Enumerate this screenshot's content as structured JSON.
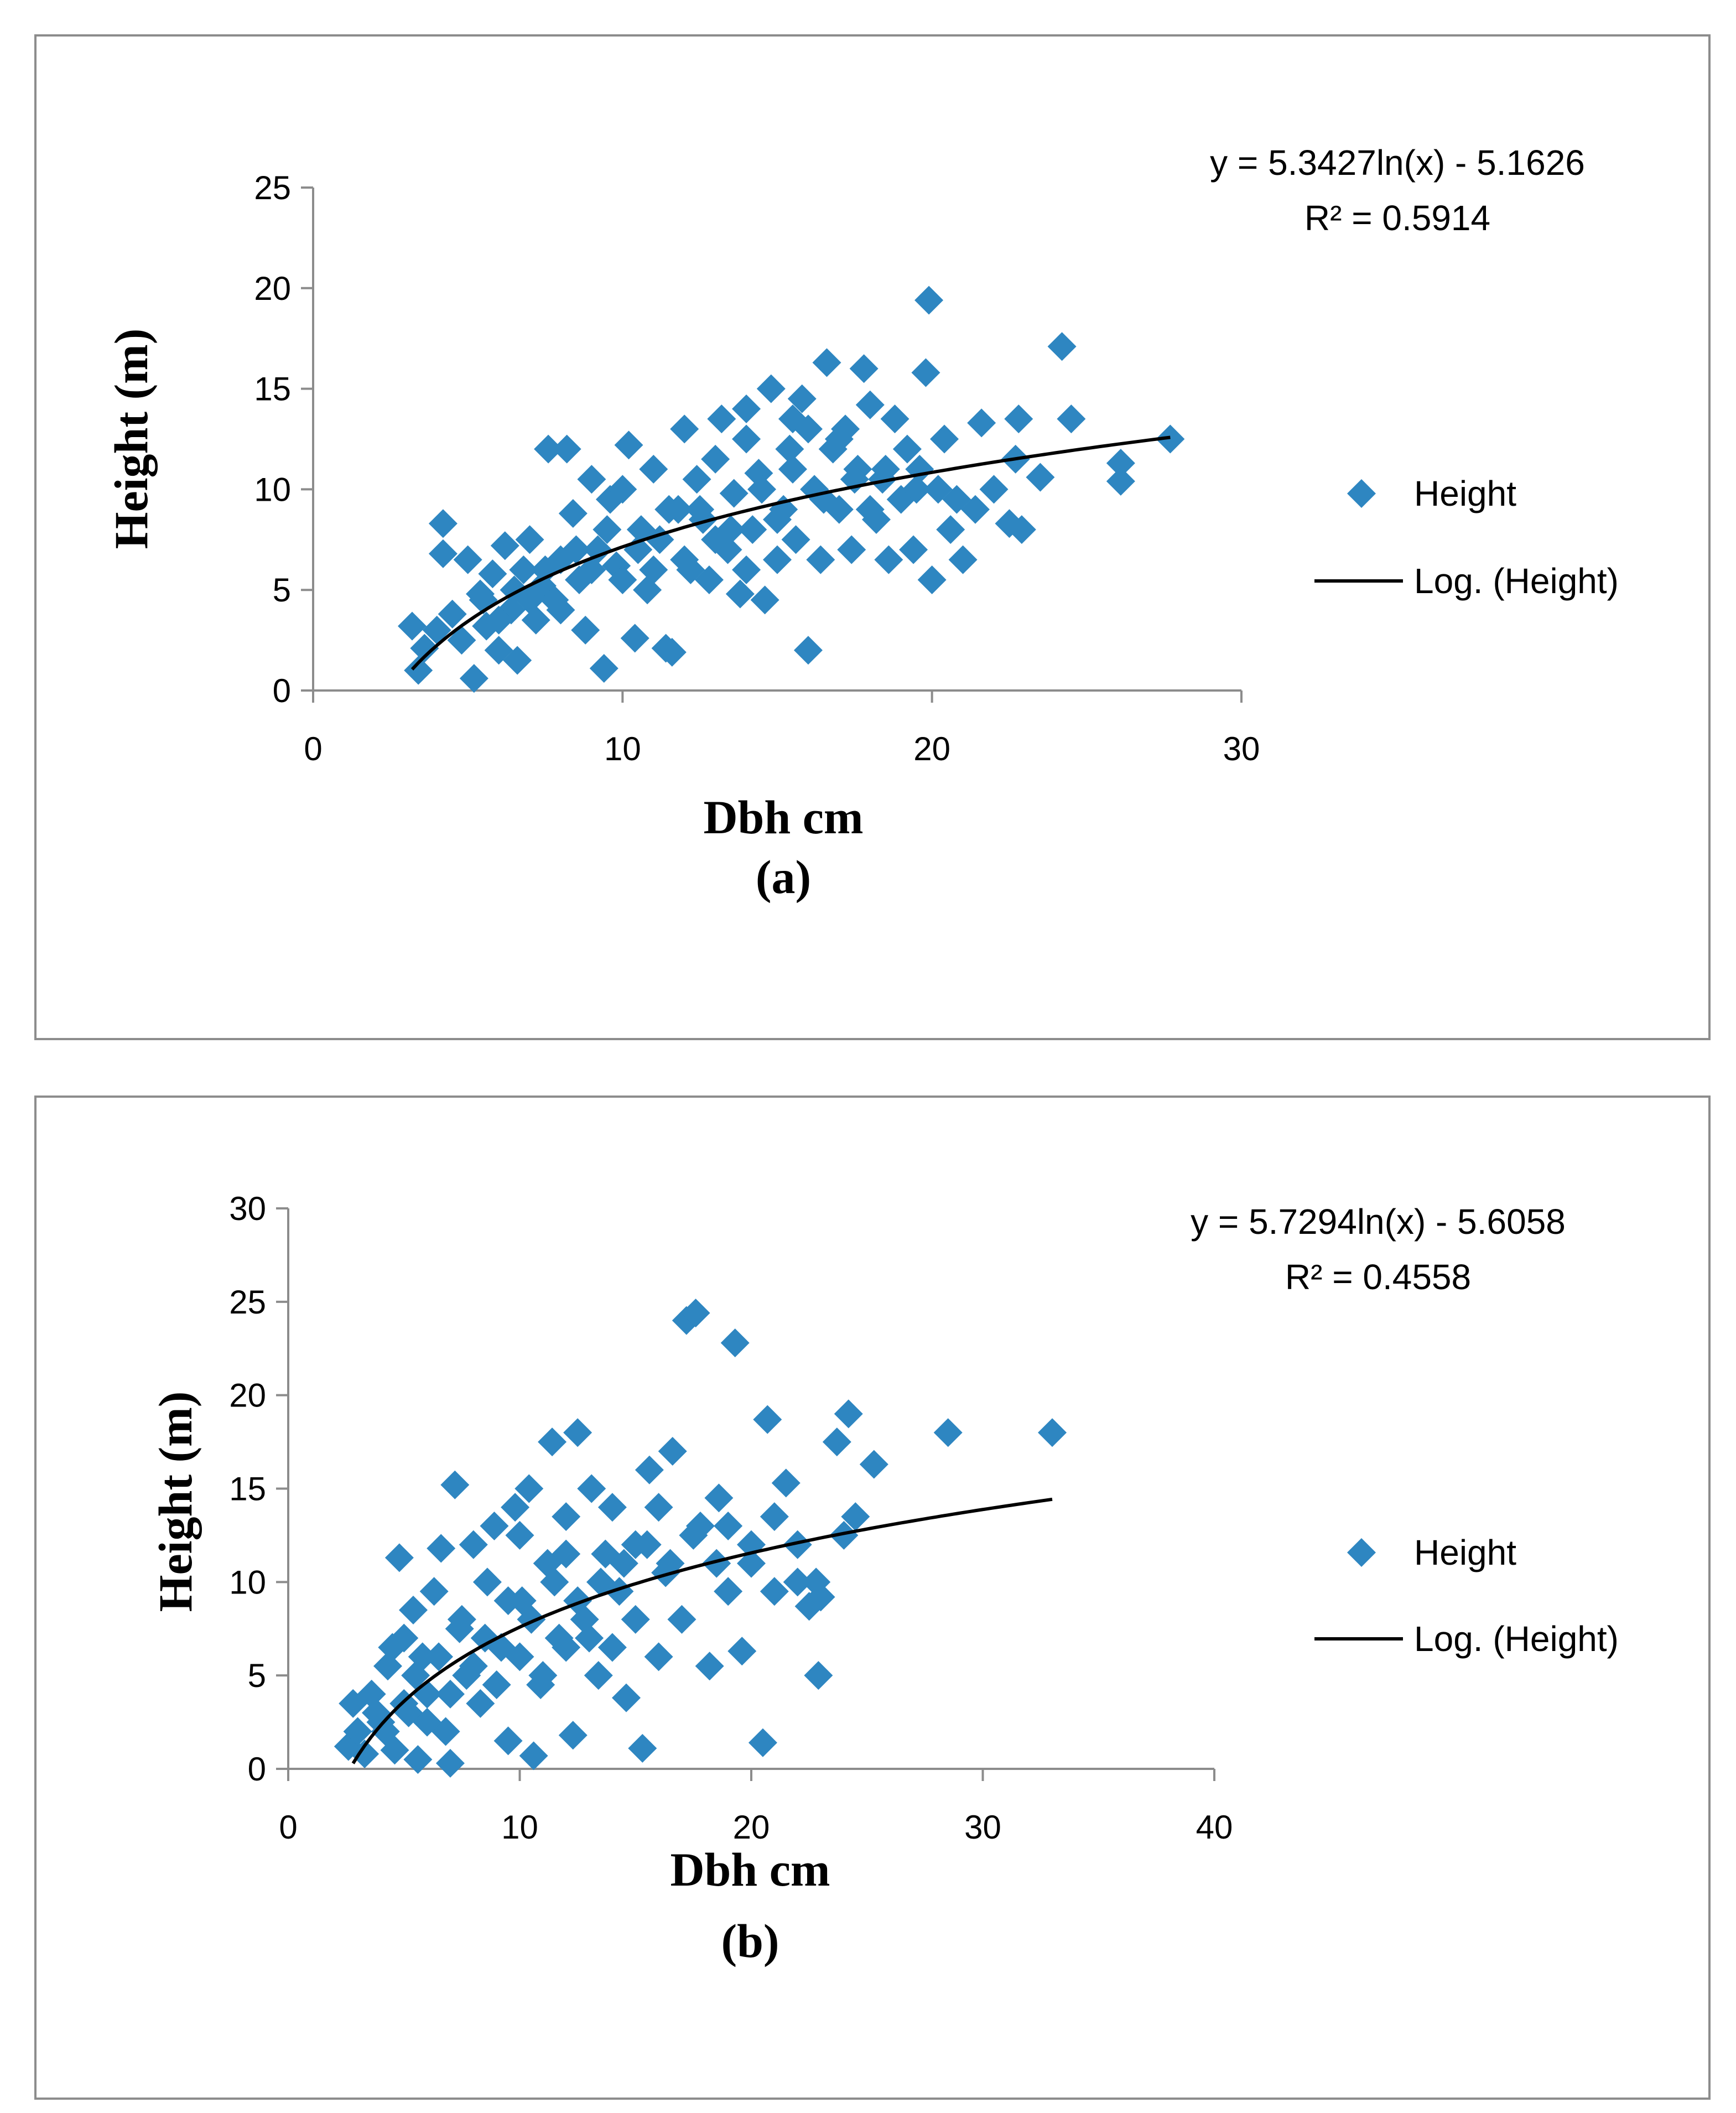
{
  "chart_data": [
    {
      "id": "a",
      "type": "scatter",
      "caption": "(a)",
      "xlabel": "Dbh cm",
      "ylabel": "Height (m)",
      "xlim": [
        0,
        30
      ],
      "ylim": [
        0,
        25
      ],
      "xticks": [
        0,
        10,
        20,
        30
      ],
      "yticks": [
        0,
        5,
        10,
        15,
        20,
        25
      ],
      "equation": "y = 5.3427ln(x) - 5.1626",
      "r_squared": "R² = 0.5914",
      "trend": {
        "type": "log",
        "a": 5.3427,
        "b": -5.1626,
        "x_range": [
          3.2,
          27.7
        ]
      },
      "legend": {
        "position": "right",
        "series_label": "Height",
        "trend_label": "Log. (Height)"
      },
      "series": [
        {
          "name": "Height",
          "color": "#2e86c1",
          "points": [
            [
              3.2,
              3.2
            ],
            [
              3.4,
              1.0
            ],
            [
              3.6,
              2.1
            ],
            [
              4.0,
              3.0
            ],
            [
              4.2,
              8.3
            ],
            [
              4.2,
              6.8
            ],
            [
              4.5,
              3.8
            ],
            [
              4.8,
              2.5
            ],
            [
              5.0,
              6.5
            ],
            [
              5.2,
              0.6
            ],
            [
              5.4,
              4.8
            ],
            [
              5.6,
              3.2
            ],
            [
              5.8,
              5.8
            ],
            [
              6.0,
              2.0
            ],
            [
              6.2,
              7.2
            ],
            [
              6.4,
              4.0
            ],
            [
              6.6,
              1.5
            ],
            [
              6.8,
              6.0
            ],
            [
              7.0,
              7.5
            ],
            [
              7.2,
              3.5
            ],
            [
              7.4,
              5.2
            ],
            [
              7.6,
              12.0
            ],
            [
              7.8,
              4.5
            ],
            [
              8.0,
              6.5
            ],
            [
              8.2,
              12.0
            ],
            [
              8.4,
              8.8
            ],
            [
              8.6,
              5.5
            ],
            [
              8.8,
              3.0
            ],
            [
              9.0,
              10.5
            ],
            [
              9.2,
              7.0
            ],
            [
              9.4,
              1.1
            ],
            [
              9.6,
              9.5
            ],
            [
              9.8,
              6.2
            ],
            [
              10.0,
              10.0
            ],
            [
              10.2,
              12.2
            ],
            [
              10.4,
              2.6
            ],
            [
              10.6,
              8.0
            ],
            [
              10.8,
              5.0
            ],
            [
              11.0,
              11.0
            ],
            [
              11.2,
              7.5
            ],
            [
              11.4,
              2.1
            ],
            [
              11.6,
              1.9
            ],
            [
              11.8,
              9.0
            ],
            [
              12.0,
              13.0
            ],
            [
              12.2,
              6.0
            ],
            [
              12.4,
              10.5
            ],
            [
              12.6,
              8.5
            ],
            [
              12.8,
              5.5
            ],
            [
              13.0,
              11.5
            ],
            [
              13.2,
              13.5
            ],
            [
              13.4,
              7.0
            ],
            [
              13.6,
              9.8
            ],
            [
              13.8,
              4.8
            ],
            [
              14.0,
              12.5
            ],
            [
              14.2,
              8.0
            ],
            [
              14.4,
              10.8
            ],
            [
              14.6,
              4.5
            ],
            [
              14.8,
              15.0
            ],
            [
              15.0,
              6.5
            ],
            [
              15.2,
              9.0
            ],
            [
              15.4,
              12.0
            ],
            [
              15.6,
              7.5
            ],
            [
              15.8,
              14.5
            ],
            [
              16.0,
              2.0
            ],
            [
              16.2,
              10.0
            ],
            [
              16.4,
              6.5
            ],
            [
              16.6,
              16.3
            ],
            [
              16.8,
              12.0
            ],
            [
              17.0,
              9.0
            ],
            [
              17.2,
              13.0
            ],
            [
              17.4,
              7.0
            ],
            [
              17.6,
              11.0
            ],
            [
              17.8,
              16.0
            ],
            [
              18.0,
              14.2
            ],
            [
              18.2,
              8.5
            ],
            [
              18.4,
              10.5
            ],
            [
              18.6,
              6.5
            ],
            [
              18.8,
              13.5
            ],
            [
              19.0,
              9.5
            ],
            [
              19.2,
              12.0
            ],
            [
              19.4,
              7.0
            ],
            [
              19.6,
              11.0
            ],
            [
              19.8,
              15.8
            ],
            [
              19.9,
              19.4
            ],
            [
              20.0,
              5.5
            ],
            [
              20.2,
              10.0
            ],
            [
              20.4,
              12.5
            ],
            [
              20.6,
              8.0
            ],
            [
              20.8,
              9.5
            ],
            [
              21.0,
              6.5
            ],
            [
              21.4,
              9.0
            ],
            [
              21.6,
              13.3
            ],
            [
              22.0,
              10.0
            ],
            [
              22.5,
              8.3
            ],
            [
              22.7,
              11.5
            ],
            [
              22.8,
              13.5
            ],
            [
              22.9,
              8.0
            ],
            [
              23.5,
              10.6
            ],
            [
              24.2,
              17.1
            ],
            [
              24.5,
              13.5
            ],
            [
              26.1,
              11.3
            ],
            [
              26.1,
              10.4
            ],
            [
              27.7,
              12.5
            ],
            [
              6.5,
              5.0
            ],
            [
              7.5,
              6.0
            ],
            [
              8.5,
              7.0
            ],
            [
              9.5,
              8.0
            ],
            [
              10.5,
              7.0
            ],
            [
              11.5,
              9.0
            ],
            [
              12.5,
              9.0
            ],
            [
              13.5,
              8.0
            ],
            [
              14.5,
              10.0
            ],
            [
              15.5,
              11.0
            ],
            [
              16.5,
              9.5
            ],
            [
              17.5,
              10.5
            ],
            [
              18.5,
              11.0
            ],
            [
              19.5,
              10.0
            ],
            [
              12.0,
              6.5
            ],
            [
              13.0,
              7.5
            ],
            [
              14.0,
              6.0
            ],
            [
              15.0,
              8.5
            ],
            [
              10.0,
              5.5
            ],
            [
              11.0,
              6.0
            ],
            [
              9.0,
              6.0
            ],
            [
              8.0,
              4.0
            ],
            [
              7.0,
              4.5
            ],
            [
              6.0,
              3.5
            ],
            [
              5.5,
              4.5
            ],
            [
              16.0,
              13.0
            ],
            [
              17.0,
              12.5
            ],
            [
              14.0,
              14.0
            ],
            [
              15.5,
              13.5
            ],
            [
              18.0,
              9.0
            ]
          ]
        }
      ]
    },
    {
      "id": "b",
      "type": "scatter",
      "caption": "(b)",
      "xlabel": "Dbh cm",
      "ylabel": "Height (m)",
      "xlim": [
        0,
        40
      ],
      "ylim": [
        0,
        30
      ],
      "xticks": [
        0,
        10,
        20,
        30,
        40
      ],
      "yticks": [
        0,
        5,
        10,
        15,
        20,
        25,
        30
      ],
      "equation": "y = 5.7294ln(x) - 5.6058",
      "r_squared": "R² = 0.4558",
      "trend": {
        "type": "log",
        "a": 5.7294,
        "b": -5.6058,
        "x_range": [
          2.8,
          33.0
        ]
      },
      "legend": {
        "position": "right",
        "series_label": "Height",
        "trend_label": "Log. (Height)"
      },
      "series": [
        {
          "name": "Height",
          "color": "#2e86c1",
          "points": [
            [
              2.6,
              1.2
            ],
            [
              2.8,
              3.5
            ],
            [
              3.0,
              2.0
            ],
            [
              3.3,
              0.8
            ],
            [
              3.6,
              4.0
            ],
            [
              4.0,
              2.5
            ],
            [
              4.3,
              5.5
            ],
            [
              4.6,
              1.0
            ],
            [
              4.8,
              11.3
            ],
            [
              5.0,
              7.0
            ],
            [
              5.2,
              3.0
            ],
            [
              5.4,
              8.5
            ],
            [
              5.6,
              0.5
            ],
            [
              5.8,
              6.0
            ],
            [
              6.0,
              4.0
            ],
            [
              6.3,
              9.5
            ],
            [
              6.6,
              11.8
            ],
            [
              6.8,
              2.0
            ],
            [
              7.0,
              0.3
            ],
            [
              7.2,
              15.2
            ],
            [
              7.4,
              7.5
            ],
            [
              7.7,
              5.0
            ],
            [
              8.0,
              12.0
            ],
            [
              8.3,
              3.5
            ],
            [
              8.6,
              10.0
            ],
            [
              8.9,
              13.0
            ],
            [
              9.2,
              6.5
            ],
            [
              9.5,
              1.5
            ],
            [
              9.8,
              14.0
            ],
            [
              10.1,
              9.0
            ],
            [
              10.4,
              15.0
            ],
            [
              10.6,
              0.7
            ],
            [
              10.9,
              4.5
            ],
            [
              11.2,
              11.0
            ],
            [
              11.4,
              17.5
            ],
            [
              11.7,
              7.0
            ],
            [
              12.0,
              13.5
            ],
            [
              12.3,
              1.8
            ],
            [
              12.5,
              18.0
            ],
            [
              12.8,
              8.0
            ],
            [
              13.1,
              15.0
            ],
            [
              13.4,
              5.0
            ],
            [
              13.7,
              11.5
            ],
            [
              14.0,
              14.0
            ],
            [
              14.3,
              9.5
            ],
            [
              14.6,
              3.8
            ],
            [
              15.0,
              12.0
            ],
            [
              15.3,
              1.1
            ],
            [
              15.6,
              16.0
            ],
            [
              16.0,
              6.0
            ],
            [
              16.3,
              10.5
            ],
            [
              16.6,
              17.0
            ],
            [
              17.0,
              8.0
            ],
            [
              17.2,
              24.0
            ],
            [
              17.6,
              24.4
            ],
            [
              17.8,
              13.0
            ],
            [
              18.2,
              5.5
            ],
            [
              18.6,
              14.5
            ],
            [
              19.0,
              9.5
            ],
            [
              19.3,
              22.8
            ],
            [
              19.6,
              6.3
            ],
            [
              20.0,
              11.0
            ],
            [
              20.5,
              1.4
            ],
            [
              20.7,
              18.7
            ],
            [
              21.0,
              13.5
            ],
            [
              21.5,
              15.3
            ],
            [
              22.0,
              10.0
            ],
            [
              22.5,
              8.7
            ],
            [
              22.8,
              10.0
            ],
            [
              22.9,
              5.0
            ],
            [
              23.0,
              9.2
            ],
            [
              23.7,
              17.5
            ],
            [
              24.0,
              12.5
            ],
            [
              24.2,
              19.0
            ],
            [
              24.5,
              13.5
            ],
            [
              25.3,
              16.3
            ],
            [
              28.5,
              18.0
            ],
            [
              33.0,
              18.0
            ],
            [
              5.5,
              5.0
            ],
            [
              6.5,
              6.0
            ],
            [
              7.5,
              8.0
            ],
            [
              8.5,
              7.0
            ],
            [
              9.5,
              9.0
            ],
            [
              10.5,
              8.0
            ],
            [
              11.5,
              10.0
            ],
            [
              12.5,
              9.0
            ],
            [
              13.5,
              10.0
            ],
            [
              14.5,
              11.0
            ],
            [
              15.5,
              12.0
            ],
            [
              16.5,
              11.0
            ],
            [
              17.5,
              12.5
            ],
            [
              18.5,
              11.0
            ],
            [
              7.0,
              4.0
            ],
            [
              8.0,
              5.5
            ],
            [
              9.0,
              4.5
            ],
            [
              10.0,
              6.0
            ],
            [
              11.0,
              5.0
            ],
            [
              12.0,
              6.5
            ],
            [
              13.0,
              7.0
            ],
            [
              14.0,
              6.5
            ],
            [
              15.0,
              8.0
            ],
            [
              6.0,
              2.5
            ],
            [
              5.0,
              3.5
            ],
            [
              4.5,
              6.5
            ],
            [
              10.0,
              12.5
            ],
            [
              12.0,
              11.5
            ],
            [
              16.0,
              14.0
            ],
            [
              19.0,
              13.0
            ],
            [
              20.0,
              12.0
            ],
            [
              21.0,
              9.5
            ],
            [
              22.0,
              12.0
            ],
            [
              3.8,
              3.0
            ],
            [
              4.2,
              2.0
            ]
          ]
        }
      ]
    }
  ]
}
